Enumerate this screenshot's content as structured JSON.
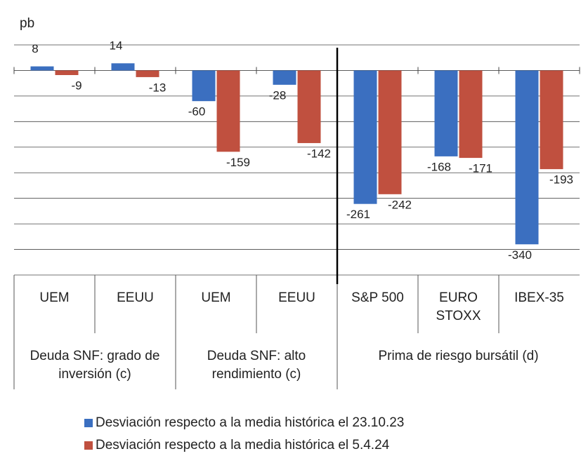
{
  "chart_data": {
    "type": "bar",
    "y_label": "pb",
    "groups": [
      {
        "label": "Deuda SNF: grado de inversión (c)",
        "categories": [
          "UEM",
          "EEUU"
        ]
      },
      {
        "label": "Deuda SNF: alto rendimiento (c)",
        "categories": [
          "UEM",
          "EEUU"
        ]
      },
      {
        "label": "Prima de riesgo bursátil (d)",
        "categories": [
          "S&P 500",
          "EURO STOXX",
          "IBEX-35"
        ]
      }
    ],
    "series": [
      {
        "name": "Desviación respecto a la media histórica el 23.10.23",
        "color": "#3b6fc0",
        "values": [
          8,
          14,
          -60,
          -28,
          -261,
          -168,
          -340
        ]
      },
      {
        "name": "Desviación respecto a la media histórica el 5.4.24",
        "color": "#c0503f",
        "values": [
          -9,
          -13,
          -159,
          -142,
          -242,
          -171,
          -193
        ]
      }
    ],
    "ylim": [
      -400,
      50
    ],
    "yticks": [
      -400,
      -350,
      -300,
      -250,
      -200,
      -150,
      -100,
      -50,
      0,
      50
    ],
    "grid": true
  }
}
